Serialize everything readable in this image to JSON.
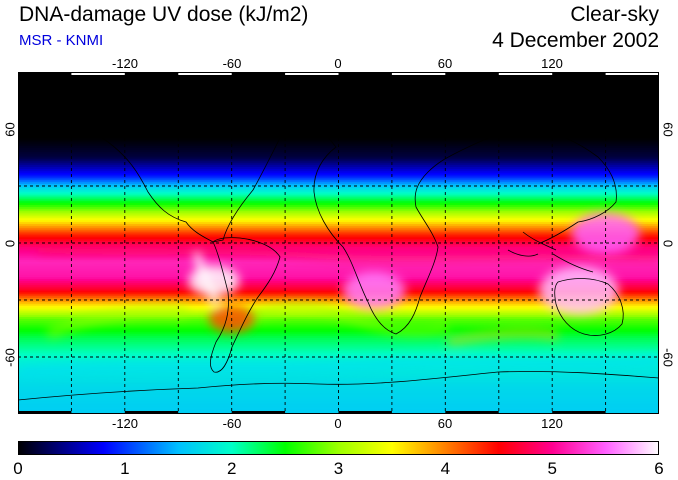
{
  "header": {
    "title": "DNA-damage UV dose (kJ/m2)",
    "credit": "MSR - KNMI",
    "sky_condition": "Clear-sky",
    "date": "4 December 2002"
  },
  "map": {
    "projection": "Equirectangular",
    "lon_range": [
      -180,
      180
    ],
    "lat_range": [
      -90,
      90
    ],
    "lon_ticks": [
      {
        "value": -120,
        "label": "-120"
      },
      {
        "value": -60,
        "label": "-60"
      },
      {
        "value": 0,
        "label": "0"
      },
      {
        "value": 60,
        "label": "60"
      },
      {
        "value": 120,
        "label": "120"
      }
    ],
    "lat_ticks": [
      {
        "value": 60,
        "label": "60"
      },
      {
        "value": 0,
        "label": "0"
      },
      {
        "value": -60,
        "label": "-60"
      }
    ],
    "field_profile": [
      {
        "lat": 90,
        "value": 0.0
      },
      {
        "lat": 55,
        "value": 0.0
      },
      {
        "lat": 45,
        "value": 0.2
      },
      {
        "lat": 35,
        "value": 0.9
      },
      {
        "lat": 28,
        "value": 1.8
      },
      {
        "lat": 20,
        "value": 2.6
      },
      {
        "lat": 12,
        "value": 3.5
      },
      {
        "lat": 5,
        "value": 4.3
      },
      {
        "lat": -2,
        "value": 4.9
      },
      {
        "lat": -10,
        "value": 5.2
      },
      {
        "lat": -18,
        "value": 5.1
      },
      {
        "lat": -25,
        "value": 4.6
      },
      {
        "lat": -32,
        "value": 3.7
      },
      {
        "lat": -40,
        "value": 2.8
      },
      {
        "lat": -50,
        "value": 2.3
      },
      {
        "lat": -62,
        "value": 1.9
      },
      {
        "lat": -75,
        "value": 1.7
      },
      {
        "lat": -90,
        "value": 1.6
      }
    ],
    "hotspots": [
      {
        "lon": -70,
        "lat": -20,
        "value": 6.0,
        "radius": 9
      },
      {
        "lon": 135,
        "lat": -25,
        "value": 5.8,
        "radius": 14
      },
      {
        "lon": 20,
        "lat": -25,
        "value": 5.6,
        "radius": 11
      },
      {
        "lon": -60,
        "lat": -40,
        "value": 4.2,
        "radius": 8
      },
      {
        "lon": 150,
        "lat": 5,
        "value": 5.5,
        "radius": 12
      }
    ]
  },
  "colorbar": {
    "min": 0,
    "max": 6,
    "tick_labels": [
      "0",
      "1",
      "2",
      "3",
      "4",
      "5",
      "6"
    ],
    "stops": [
      {
        "value": 0.0,
        "color": "#000000"
      },
      {
        "value": 0.8,
        "color": "#0000ff"
      },
      {
        "value": 1.5,
        "color": "#00c0ff"
      },
      {
        "value": 2.0,
        "color": "#00ffc8"
      },
      {
        "value": 2.5,
        "color": "#00ff00"
      },
      {
        "value": 3.0,
        "color": "#9cff00"
      },
      {
        "value": 3.5,
        "color": "#ffff00"
      },
      {
        "value": 4.0,
        "color": "#ff8000"
      },
      {
        "value": 4.5,
        "color": "#ff0000"
      },
      {
        "value": 5.0,
        "color": "#ff0090"
      },
      {
        "value": 5.5,
        "color": "#ff60ff"
      },
      {
        "value": 6.0,
        "color": "#ffffff"
      }
    ]
  },
  "colors": {
    "credit": "#0000dd",
    "coastline": "#000000",
    "gridline": "#000000"
  }
}
